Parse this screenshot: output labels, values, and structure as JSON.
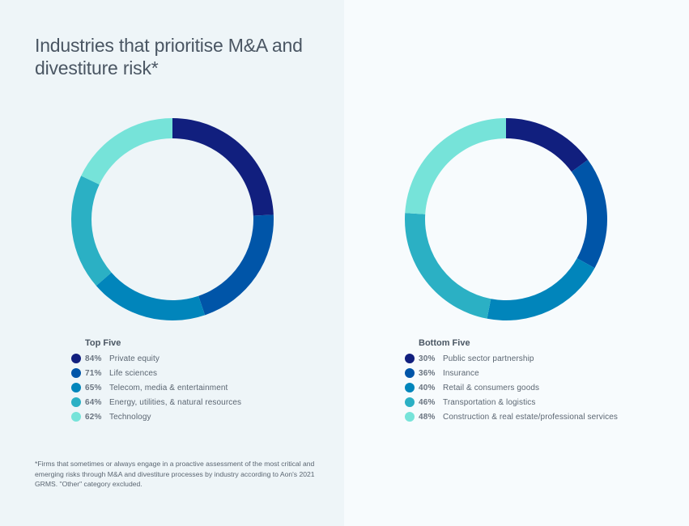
{
  "title": "Industries that prioritise M&A and divestiture risk*",
  "footnote": "*Firms that sometimes or always engage in a proactive assessment of the most critical and emerging risks through M&A and divestiture processes by industry according to Aon's 2021 GRMS. \"Other\" category excluded.",
  "colors": {
    "panel_left_bg": "#eef5f8",
    "panel_right_bg": "#f7fbfd",
    "series": [
      "#111f7e",
      "#0055a8",
      "#0185bb",
      "#2bb0c4",
      "#76e3d9"
    ]
  },
  "chart_data": [
    {
      "type": "pie",
      "variant": "donut",
      "legend_title": "Top Five",
      "legend_position": "bottom",
      "categories": [
        "Private equity",
        "Life sciences",
        "Telecom, media & entertainment",
        "Energy, utilities, & natural resources",
        "Technology"
      ],
      "values": [
        84,
        71,
        65,
        64,
        62
      ],
      "labels": [
        "84%",
        "71%",
        "65%",
        "64%",
        "62%"
      ],
      "colors": [
        "#111f7e",
        "#0055a8",
        "#0185bb",
        "#2bb0c4",
        "#76e3d9"
      ]
    },
    {
      "type": "pie",
      "variant": "donut",
      "legend_title": "Bottom Five",
      "legend_position": "bottom",
      "categories": [
        "Public sector partnership",
        "Insurance",
        "Retail & consumers goods",
        "Transportation & logistics",
        "Construction & real estate/professional services"
      ],
      "values": [
        30,
        36,
        40,
        46,
        48
      ],
      "labels": [
        "30%",
        "36%",
        "40%",
        "46%",
        "48%"
      ],
      "colors": [
        "#111f7e",
        "#0055a8",
        "#0185bb",
        "#2bb0c4",
        "#76e3d9"
      ]
    }
  ]
}
